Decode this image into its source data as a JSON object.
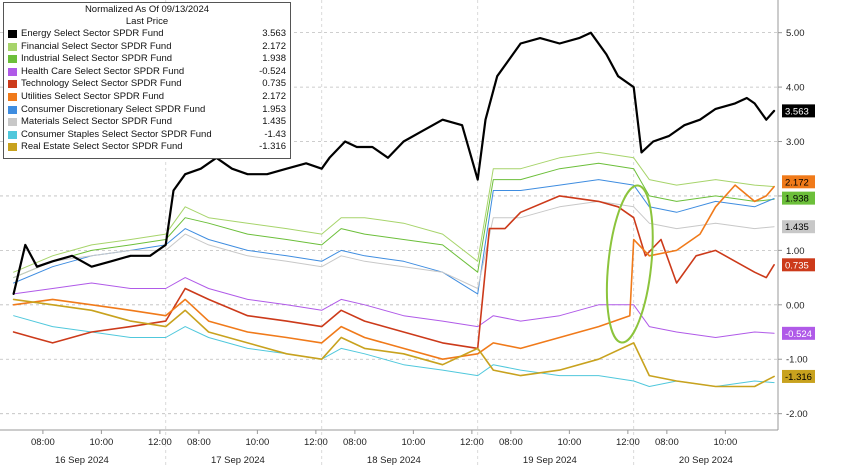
{
  "chart_data": {
    "type": "line",
    "title": "Normalized As Of 09/13/2024",
    "subtitle": "Last Price",
    "y_axis": {
      "side": "right",
      "ticks": [
        5.0,
        4.0,
        3.0,
        2.0,
        1.0,
        0.0,
        -1.0,
        -2.0
      ],
      "tick_labels": [
        "5.00",
        "4.00",
        "3.00",
        "2.00",
        "1.00",
        "0.00",
        "-1.00",
        "-2.00"
      ],
      "ylim": [
        -2.3,
        5.6
      ]
    },
    "x_axis": {
      "xlim": [
        -0.35,
        19.6
      ],
      "tick_positions": [
        0.75,
        2.25,
        3.75,
        4.75,
        6.25,
        7.75,
        8.75,
        10.25,
        11.75,
        12.75,
        14.25,
        15.75,
        16.75,
        18.25,
        19.75
      ],
      "tick_labels": [
        "08:00",
        "10:00",
        "12:00",
        "08:00",
        "10:00",
        "12:00",
        "08:00",
        "10:00",
        "12:00",
        "08:00",
        "10:00",
        "12:00",
        "08:00",
        "10:00",
        "12:00"
      ],
      "day_labels": [
        {
          "x": 1.75,
          "label": "16 Sep 2024"
        },
        {
          "x": 5.75,
          "label": "17 Sep 2024"
        },
        {
          "x": 9.75,
          "label": "18 Sep 2024"
        },
        {
          "x": 13.75,
          "label": "19 Sep 2024"
        },
        {
          "x": 17.75,
          "label": "20 Sep 2024"
        }
      ],
      "day_separators": [
        3.9,
        7.9,
        11.9,
        15.9
      ]
    },
    "grid": "horizontal dashed",
    "legend_placement": "top-left",
    "series": [
      {
        "name": "Energy Select Sector SPDR Fund",
        "value": "3.563",
        "color": "#000000",
        "width": 2.2,
        "x": [
          0,
          0.3,
          0.6,
          1,
          1.5,
          2,
          2.5,
          3,
          3.5,
          3.9,
          4.1,
          4.4,
          4.8,
          5.2,
          5.6,
          6,
          6.5,
          7,
          7.5,
          7.9,
          8.1,
          8.5,
          8.8,
          9.2,
          9.6,
          10,
          10.5,
          11,
          11.5,
          11.9,
          12.1,
          12.4,
          12.7,
          13,
          13.5,
          14,
          14.5,
          14.8,
          15.2,
          15.5,
          15.9,
          16.1,
          16.4,
          16.8,
          17.2,
          17.6,
          18,
          18.5,
          18.8,
          19.0,
          19.3,
          19.5
        ],
        "y": [
          0.2,
          1.1,
          0.7,
          0.8,
          0.9,
          0.7,
          0.8,
          0.9,
          0.9,
          1.1,
          2.1,
          2.4,
          2.5,
          2.7,
          2.5,
          2.4,
          2.4,
          2.5,
          2.6,
          2.5,
          2.7,
          3.0,
          2.9,
          2.9,
          2.7,
          3.0,
          3.2,
          3.4,
          3.3,
          2.3,
          3.4,
          4.2,
          4.5,
          4.8,
          4.9,
          4.8,
          4.9,
          5.0,
          4.6,
          4.2,
          4.0,
          2.8,
          3.0,
          3.1,
          3.3,
          3.4,
          3.6,
          3.7,
          3.8,
          3.7,
          3.4,
          3.563
        ]
      },
      {
        "name": "Financial Select Sector SPDR Fund",
        "value": "2.172",
        "color": "#a7d46b",
        "width": 1.0,
        "x": [
          0,
          1,
          2,
          3,
          3.9,
          4.4,
          5,
          6,
          7,
          7.9,
          8.4,
          9,
          10,
          11,
          11.9,
          12.3,
          13,
          14,
          15,
          15.9,
          16.3,
          17,
          18,
          19,
          19.5
        ],
        "y": [
          0.6,
          0.9,
          1.1,
          1.2,
          1.3,
          1.8,
          1.6,
          1.5,
          1.4,
          1.3,
          1.6,
          1.6,
          1.5,
          1.3,
          0.8,
          2.5,
          2.5,
          2.7,
          2.8,
          2.7,
          2.3,
          2.2,
          2.3,
          2.2,
          2.172
        ]
      },
      {
        "name": "Industrial Select Sector SPDR Fund",
        "value": "1.938",
        "color": "#6cbf3a",
        "width": 1.0,
        "x": [
          0,
          1,
          2,
          3,
          3.9,
          4.4,
          5,
          6,
          7,
          7.9,
          8.4,
          9,
          10,
          11,
          11.9,
          12.3,
          13,
          14,
          15,
          15.9,
          16.3,
          17,
          18,
          19,
          19.5
        ],
        "y": [
          0.5,
          0.8,
          1.0,
          1.1,
          1.2,
          1.6,
          1.5,
          1.3,
          1.2,
          1.1,
          1.4,
          1.3,
          1.2,
          1.1,
          0.6,
          2.3,
          2.3,
          2.5,
          2.6,
          2.5,
          2.0,
          1.9,
          2.0,
          1.9,
          1.938
        ]
      },
      {
        "name": "Health Care Select Sector SPDR Fund",
        "value": "-0.524",
        "color": "#b05ae8",
        "width": 1.0,
        "x": [
          0,
          1,
          2,
          3,
          3.9,
          4.4,
          5,
          6,
          7,
          7.9,
          8.4,
          9,
          10,
          11,
          11.9,
          12.3,
          13,
          14,
          15,
          15.9,
          16.3,
          17,
          18,
          19,
          19.5
        ],
        "y": [
          0.2,
          0.3,
          0.4,
          0.3,
          0.3,
          0.5,
          0.3,
          0.1,
          0.0,
          -0.1,
          0.1,
          0.0,
          -0.2,
          -0.3,
          -0.4,
          -0.2,
          -0.3,
          -0.2,
          0.0,
          0.0,
          -0.4,
          -0.5,
          -0.6,
          -0.5,
          -0.524
        ]
      },
      {
        "name": "Technology Select Sector SPDR Fund",
        "value": "0.735",
        "color": "#cc3a1a",
        "width": 1.6,
        "x": [
          0,
          0.5,
          1,
          2,
          3,
          3.9,
          4.4,
          5,
          6,
          7,
          7.9,
          8.4,
          9,
          10,
          11,
          11.9,
          12.2,
          12.6,
          13,
          14,
          15,
          15.5,
          15.9,
          16.2,
          16.6,
          17,
          17.5,
          18,
          18.5,
          19,
          19.3,
          19.5
        ],
        "y": [
          -0.5,
          -0.6,
          -0.7,
          -0.5,
          -0.4,
          -0.3,
          0.3,
          0.1,
          -0.2,
          -0.3,
          -0.4,
          -0.1,
          -0.3,
          -0.5,
          -0.7,
          -0.8,
          1.4,
          1.4,
          1.7,
          2.0,
          1.9,
          1.8,
          1.6,
          0.9,
          1.2,
          0.4,
          0.9,
          1.0,
          0.8,
          0.6,
          0.5,
          0.735
        ]
      },
      {
        "name": "Utilities Select Sector SPDR Fund",
        "value": "2.172",
        "color": "#f07a1a",
        "width": 1.6,
        "x": [
          0,
          1,
          2,
          3,
          3.9,
          4.4,
          5,
          6,
          7,
          7.9,
          8.4,
          9,
          10,
          11,
          11.9,
          12.3,
          13,
          14,
          15,
          15.8,
          15.9,
          16.3,
          17,
          17.6,
          18,
          18.5,
          19,
          19.3,
          19.5
        ],
        "y": [
          0.0,
          0.1,
          0.0,
          -0.1,
          -0.2,
          0.1,
          -0.3,
          -0.5,
          -0.6,
          -0.7,
          -0.4,
          -0.6,
          -0.8,
          -1.0,
          -0.9,
          -0.7,
          -0.8,
          -0.6,
          -0.4,
          -0.2,
          1.2,
          0.9,
          1.0,
          1.3,
          1.8,
          2.2,
          1.9,
          2.0,
          2.172
        ]
      },
      {
        "name": "Consumer Discretionary Select SPDR Fund",
        "value": "1.953",
        "color": "#3f8de0",
        "width": 1.0,
        "x": [
          0,
          1,
          2,
          3,
          3.9,
          4.4,
          5,
          6,
          7,
          7.9,
          8.4,
          9,
          10,
          11,
          11.9,
          12.3,
          13,
          14,
          15,
          15.9,
          16.3,
          17,
          18,
          19,
          19.5
        ],
        "y": [
          0.4,
          0.7,
          0.9,
          1.0,
          1.1,
          1.4,
          1.2,
          1.0,
          0.9,
          0.8,
          1.0,
          0.9,
          0.8,
          0.6,
          0.2,
          2.1,
          2.1,
          2.2,
          2.3,
          2.2,
          1.8,
          1.7,
          1.9,
          1.8,
          1.953
        ]
      },
      {
        "name": "Materials Select Sector SPDR Fund",
        "value": "1.435",
        "color": "#c8c8c8",
        "width": 1.0,
        "x": [
          0,
          1,
          2,
          3,
          3.9,
          4.4,
          5,
          6,
          7,
          7.9,
          8.4,
          9,
          10,
          11,
          11.9,
          12.3,
          13,
          14,
          15,
          15.9,
          16.3,
          17,
          18,
          19,
          19.5
        ],
        "y": [
          0.5,
          0.8,
          0.9,
          1.0,
          1.0,
          1.3,
          1.1,
          0.9,
          0.8,
          0.7,
          0.9,
          0.8,
          0.7,
          0.6,
          0.3,
          1.6,
          1.6,
          1.8,
          1.9,
          1.8,
          1.5,
          1.4,
          1.5,
          1.4,
          1.435
        ]
      },
      {
        "name": "Consumer Staples Select Sector SPDR Fund",
        "value": "-1.43",
        "color": "#50c8dc",
        "width": 1.0,
        "x": [
          0,
          1,
          2,
          3,
          3.9,
          4.4,
          5,
          6,
          7,
          7.9,
          8.4,
          9,
          10,
          11,
          11.9,
          12.3,
          13,
          14,
          15,
          15.9,
          16.3,
          17,
          18,
          19,
          19.5
        ],
        "y": [
          -0.2,
          -0.4,
          -0.5,
          -0.6,
          -0.6,
          -0.4,
          -0.6,
          -0.8,
          -0.9,
          -1.0,
          -0.8,
          -0.9,
          -1.1,
          -1.2,
          -1.3,
          -1.1,
          -1.2,
          -1.3,
          -1.3,
          -1.4,
          -1.5,
          -1.4,
          -1.5,
          -1.4,
          -1.43
        ]
      },
      {
        "name": "Real Estate Select Sector SPDR Fund",
        "value": "-1.316",
        "color": "#c8a21e",
        "width": 1.6,
        "x": [
          0,
          1,
          2,
          3,
          3.9,
          4.4,
          5,
          6,
          7,
          7.9,
          8.4,
          9,
          10,
          11,
          11.9,
          12.3,
          13,
          14,
          15,
          15.9,
          16.3,
          17,
          18,
          19,
          19.5
        ],
        "y": [
          0.1,
          0.0,
          -0.1,
          -0.3,
          -0.4,
          -0.1,
          -0.5,
          -0.7,
          -0.9,
          -1.0,
          -0.6,
          -0.8,
          -0.9,
          -1.1,
          -0.8,
          -1.2,
          -1.3,
          -1.2,
          -1.0,
          -0.7,
          -1.3,
          -1.4,
          -1.5,
          -1.5,
          -1.316
        ]
      }
    ],
    "value_tags": [
      {
        "label": "3.563",
        "y": 3.563,
        "bg": "#000000",
        "fg": "#ffffff"
      },
      {
        "label": "2.172",
        "y": 2.26,
        "bg": "#f07a1a",
        "fg": "#000000"
      },
      {
        "label": "1.938",
        "y": 1.96,
        "bg": "#6cbf3a",
        "fg": "#000000"
      },
      {
        "label": "1.435",
        "y": 1.435,
        "bg": "#c8c8c8",
        "fg": "#000000"
      },
      {
        "label": "0.735",
        "y": 0.735,
        "bg": "#cc3a1a",
        "fg": "#ffffff"
      },
      {
        "label": "-0.524",
        "y": -0.524,
        "bg": "#b05ae8",
        "fg": "#ffffff"
      },
      {
        "label": "-1.316",
        "y": -1.316,
        "bg": "#c8a21e",
        "fg": "#000000"
      }
    ],
    "annotation": {
      "shape": "ellipse",
      "color": "#8cc43c",
      "cx": 15.8,
      "cy": 0.75,
      "rx": 0.55,
      "ry": 1.45
    }
  }
}
